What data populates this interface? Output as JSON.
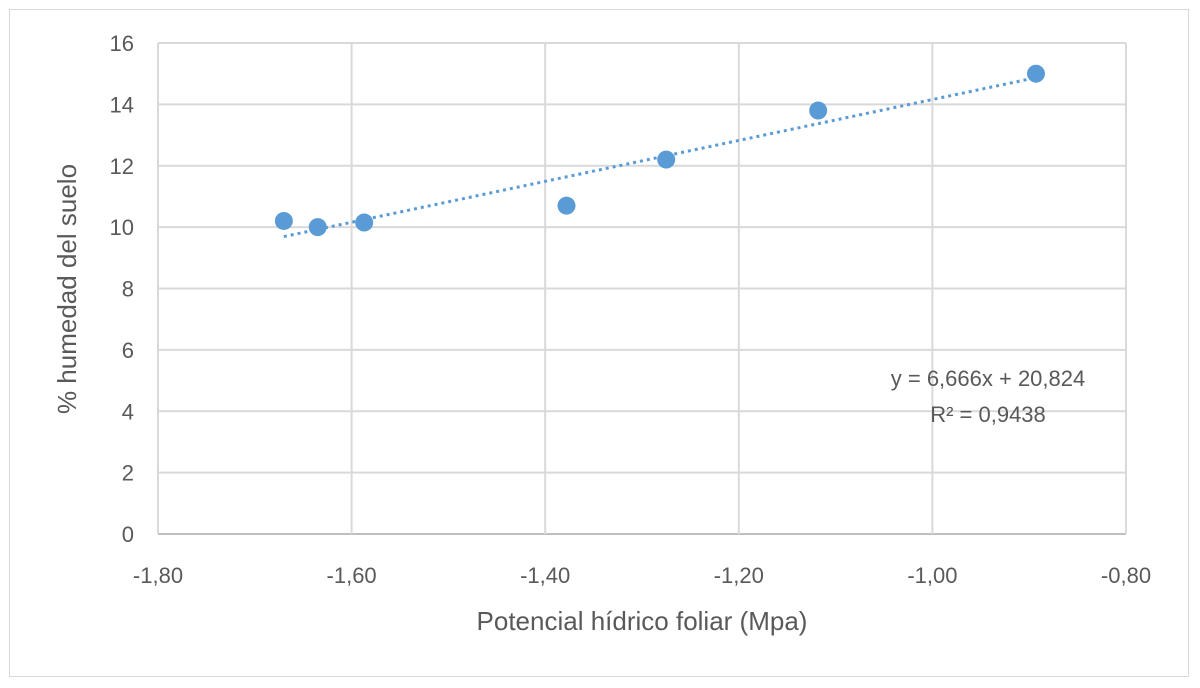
{
  "chart_data": {
    "type": "scatter",
    "title": "",
    "xlabel": "Potencial hídrico foliar (Mpa)",
    "ylabel": "% humedad del suelo",
    "xlim": [
      -1.8,
      -0.8
    ],
    "ylim": [
      0,
      16
    ],
    "x_ticks": [
      "-1,80",
      "-1,60",
      "-1,40",
      "-1,20",
      "-1,00",
      "-0,80"
    ],
    "y_ticks": [
      "0",
      "2",
      "4",
      "6",
      "8",
      "10",
      "12",
      "14",
      "16"
    ],
    "grid": true,
    "series": [
      {
        "points": [
          {
            "x": -1.67,
            "y": 10.2
          },
          {
            "x": -1.635,
            "y": 10.0
          },
          {
            "x": -1.587,
            "y": 10.15
          },
          {
            "x": -1.378,
            "y": 10.7
          },
          {
            "x": -1.275,
            "y": 12.2
          },
          {
            "x": -1.118,
            "y": 13.8
          },
          {
            "x": -0.893,
            "y": 15.0
          }
        ],
        "color": "#5b9bd5"
      }
    ],
    "trendline": {
      "type": "linear",
      "slope": 6.666,
      "intercept": 20.824,
      "x_range": [
        -1.67,
        -0.893
      ],
      "style": "dotted",
      "color": "#5b9bd5",
      "equation_label": "y = 6,666x + 20,824",
      "r2_label": "R² = 0,9438"
    }
  }
}
